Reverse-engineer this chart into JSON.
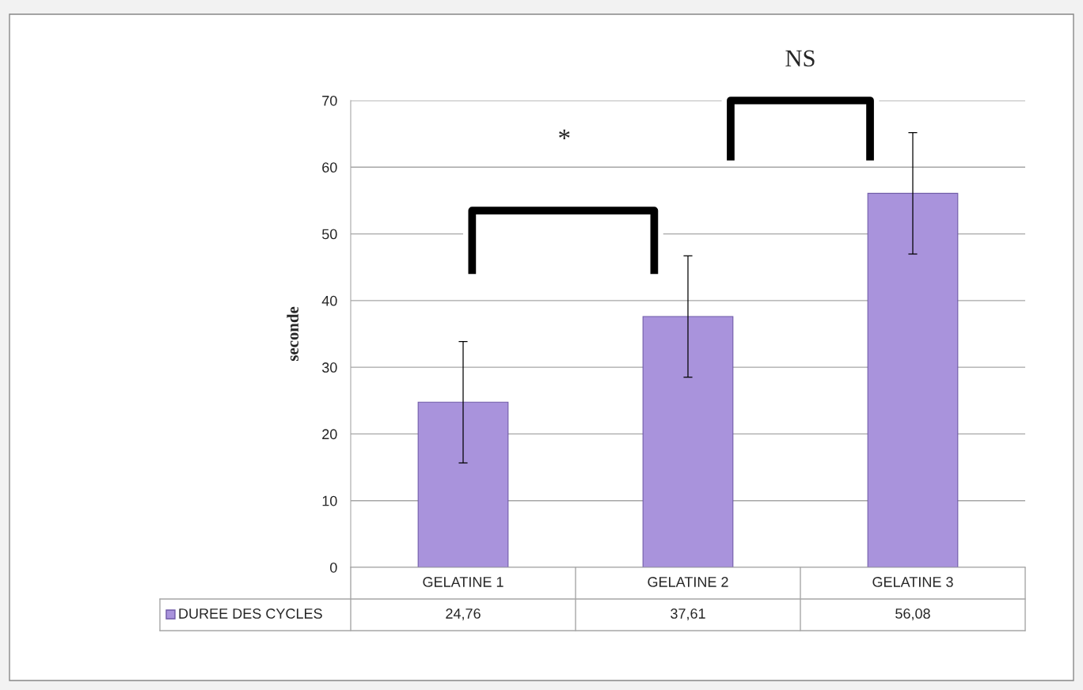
{
  "chart_data": {
    "type": "bar",
    "ylabel": "seconde",
    "categories": [
      "GELATINE 1",
      "GELATINE 2",
      "GELATINE 3"
    ],
    "series": [
      {
        "name": "DUREE DES CYCLES",
        "color": "#a993dc",
        "values": [
          24.76,
          37.61,
          56.08
        ],
        "value_labels": [
          "24,76",
          "37,61",
          "56,08"
        ],
        "errors": [
          9.1,
          9.1,
          9.1
        ]
      }
    ],
    "ylim": [
      0,
      70
    ],
    "yticks": [
      0,
      10,
      20,
      30,
      40,
      50,
      60,
      70
    ],
    "grid": "y",
    "data_labels": true,
    "annotations": [
      "*",
      "NS"
    ]
  }
}
